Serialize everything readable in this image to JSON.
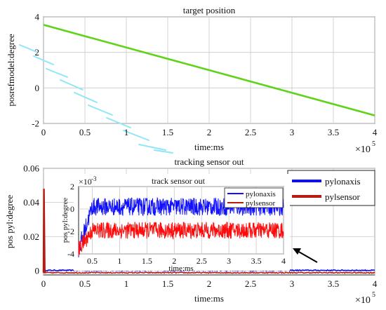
{
  "chart_data": [
    {
      "type": "line",
      "title": "target position",
      "xlabel": "time:ms",
      "ylabel": "posrefmodel:degree",
      "x_multiplier": "×10",
      "x_exponent": "5",
      "xlim": [
        0,
        400000
      ],
      "ylim": [
        -2,
        4
      ],
      "xticks": [
        0,
        50000,
        100000,
        150000,
        200000,
        250000,
        300000,
        350000,
        400000
      ],
      "xtick_labels": [
        "0",
        "0.5",
        "1",
        "1.5",
        "2",
        "2.5",
        "3",
        "3.5",
        "4"
      ],
      "yticks": [
        -2,
        0,
        2,
        4
      ],
      "ytick_labels": [
        "-2",
        "0",
        "2",
        "4"
      ],
      "grid": true,
      "series": [
        {
          "color": "#5fd31a",
          "x": [
            0,
            400000
          ],
          "y": [
            3.55,
            -1.55
          ]
        }
      ]
    },
    {
      "type": "line",
      "title": "tracking sensor out",
      "xlabel": "time:ms",
      "ylabel": "pos pyl:degree",
      "x_multiplier": "×10",
      "x_exponent": "5",
      "xlim": [
        0,
        400000
      ],
      "ylim": [
        -0.0025,
        0.06
      ],
      "xticks": [
        0,
        50000,
        100000,
        150000,
        200000,
        250000,
        300000,
        350000,
        400000
      ],
      "xtick_labels": [
        "0",
        "0.5",
        "1",
        "1.5",
        "2",
        "2.5",
        "3",
        "3.5",
        "4"
      ],
      "yticks": [
        0,
        0.02,
        0.04,
        0.06
      ],
      "ytick_labels": [
        "0",
        "0.02",
        "0.04",
        "0.06"
      ],
      "grid": true,
      "legend": {
        "placement": "outside-right",
        "entries": [
          "pylonaxis",
          "pylsensor"
        ]
      },
      "series": [
        {
          "name": "pylonaxis",
          "color": "#1010e0",
          "base": 0.0002,
          "spread": 0.0006,
          "spike": 0.003
        },
        {
          "name": "pylsensor",
          "color": "#b81c10",
          "base": -0.0012,
          "spread": 0.0006,
          "spike": 0.048
        }
      ]
    },
    {
      "type": "line",
      "title": "track sensor out",
      "inset": true,
      "xlabel": "time:ms",
      "ylabel": "pos pyl:degree",
      "y_multiplier": "×10",
      "y_exponent": "-3",
      "xlim": [
        25000,
        400000
      ],
      "ylim": [
        -4,
        2
      ],
      "xticks": [
        50000,
        100000,
        150000,
        200000,
        250000,
        300000,
        350000,
        400000
      ],
      "xtick_labels": [
        "0.5",
        "1",
        "1.5",
        "2",
        "2.5",
        "3",
        "3.5",
        "4"
      ],
      "yticks": [
        -4,
        -2,
        0,
        2
      ],
      "ytick_labels": [
        "-4",
        "-2",
        "0",
        "2"
      ],
      "grid": true,
      "legend": {
        "placement": "top-right",
        "entries": [
          "pylonaxis",
          "pylsensor"
        ]
      },
      "series": [
        {
          "name": "pylonaxis",
          "color": "#1010ff",
          "mean": 0.2,
          "amp": 0.8
        },
        {
          "name": "pylsensor",
          "color": "#ff0a0a",
          "mean": -1.9,
          "amp": 0.75
        }
      ]
    }
  ]
}
